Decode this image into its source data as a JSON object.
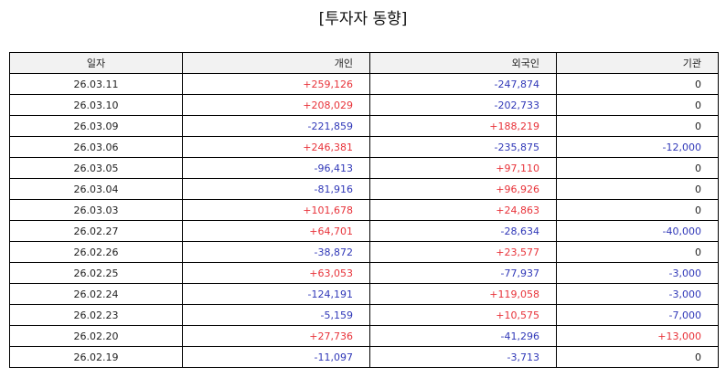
{
  "title": "[투자자 동향]",
  "table": {
    "headers": {
      "date": "일자",
      "individual": "개인",
      "foreign": "외국인",
      "institution": "기관"
    },
    "rows": [
      {
        "date": "26.03.11",
        "individual": "+259,126",
        "foreign": "-247,874",
        "institution": "0"
      },
      {
        "date": "26.03.10",
        "individual": "+208,029",
        "foreign": "-202,733",
        "institution": "0"
      },
      {
        "date": "26.03.09",
        "individual": "-221,859",
        "foreign": "+188,219",
        "institution": "0"
      },
      {
        "date": "26.03.06",
        "individual": "+246,381",
        "foreign": "-235,875",
        "institution": "-12,000"
      },
      {
        "date": "26.03.05",
        "individual": "-96,413",
        "foreign": "+97,110",
        "institution": "0"
      },
      {
        "date": "26.03.04",
        "individual": "-81,916",
        "foreign": "+96,926",
        "institution": "0"
      },
      {
        "date": "26.03.03",
        "individual": "+101,678",
        "foreign": "+24,863",
        "institution": "0"
      },
      {
        "date": "26.02.27",
        "individual": "+64,701",
        "foreign": "-28,634",
        "institution": "-40,000"
      },
      {
        "date": "26.02.26",
        "individual": "-38,872",
        "foreign": "+23,577",
        "institution": "0"
      },
      {
        "date": "26.02.25",
        "individual": "+63,053",
        "foreign": "-77,937",
        "institution": "-3,000"
      },
      {
        "date": "26.02.24",
        "individual": "-124,191",
        "foreign": "+119,058",
        "institution": "-3,000"
      },
      {
        "date": "26.02.23",
        "individual": "-5,159",
        "foreign": "+10,575",
        "institution": "-7,000"
      },
      {
        "date": "26.02.20",
        "individual": "+27,736",
        "foreign": "-41,296",
        "institution": "+13,000"
      },
      {
        "date": "26.02.19",
        "individual": "-11,097",
        "foreign": "-3,713",
        "institution": "0"
      }
    ]
  },
  "colors": {
    "positive": "#e8333a",
    "negative": "#3038b8",
    "zero": "#222222",
    "header_bg": "#f2f2f2"
  }
}
